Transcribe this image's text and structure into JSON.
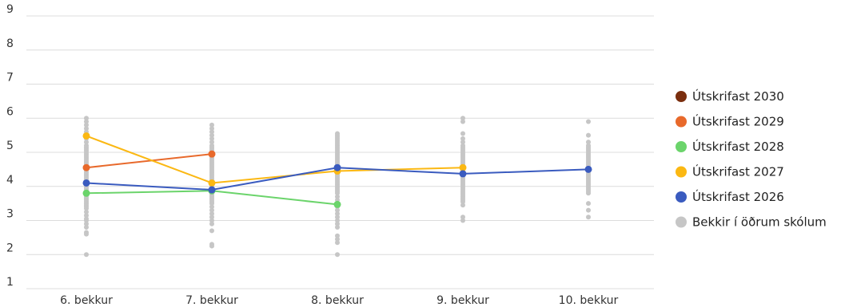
{
  "chart_data": {
    "type": "line",
    "categories": [
      "6. bekkur",
      "7. bekkur",
      "8. bekkur",
      "9. bekkur",
      "10. bekkur"
    ],
    "y_ticks": [
      "1",
      "2",
      "3",
      "4",
      "5",
      "6",
      "7",
      "8",
      "9"
    ],
    "ylim": [
      1,
      9
    ],
    "grid": true,
    "legend_position": "right",
    "series": [
      {
        "name": "Útskrifast 2030",
        "color": "#7a2e0e",
        "values": [
          null,
          null,
          null,
          null,
          null
        ]
      },
      {
        "name": "Útskrifast 2029",
        "color": "#e8692b",
        "values": [
          4.55,
          4.95,
          null,
          null,
          null
        ]
      },
      {
        "name": "Útskrifast 2028",
        "color": "#6bd46b",
        "values": [
          3.8,
          3.87,
          3.47,
          null,
          null
        ]
      },
      {
        "name": "Útskrifast 2027",
        "color": "#fbb813",
        "values": [
          5.48,
          4.1,
          4.45,
          4.55,
          null
        ]
      },
      {
        "name": "Útskrifast 2026",
        "color": "#3a5bbf",
        "values": [
          4.1,
          3.9,
          4.55,
          4.37,
          4.5
        ]
      }
    ],
    "other_schools": {
      "name": "Bekkir í öðrum skólum",
      "color": "#c6c6c6",
      "points": [
        [
          2.0,
          2.6,
          2.65,
          2.8,
          2.9,
          3.0,
          3.05,
          3.15,
          3.25,
          3.35,
          3.4,
          3.45,
          3.5,
          3.55,
          3.6,
          3.65,
          3.7,
          3.75,
          3.8,
          3.85,
          3.9,
          3.95,
          4.0,
          4.05,
          4.1,
          4.15,
          4.2,
          4.25,
          4.3,
          4.35,
          4.4,
          4.45,
          4.5,
          4.55,
          4.6,
          4.65,
          4.7,
          4.75,
          4.8,
          4.85,
          4.9,
          4.95,
          5.0,
          5.05,
          5.1,
          5.15,
          5.2,
          5.3,
          5.4,
          5.5,
          5.6,
          5.7,
          5.8,
          5.9,
          6.0
        ],
        [
          2.25,
          2.3,
          2.7,
          2.9,
          3.0,
          3.1,
          3.2,
          3.3,
          3.4,
          3.5,
          3.55,
          3.6,
          3.65,
          3.7,
          3.75,
          3.8,
          3.85,
          3.9,
          3.95,
          4.0,
          4.05,
          4.1,
          4.15,
          4.2,
          4.25,
          4.3,
          4.35,
          4.4,
          4.45,
          4.5,
          4.55,
          4.6,
          4.65,
          4.7,
          4.75,
          4.8,
          4.85,
          4.9,
          4.95,
          5.0,
          5.05,
          5.1,
          5.15,
          5.2,
          5.3,
          5.4,
          5.5,
          5.6,
          5.7,
          5.8
        ],
        [
          2.0,
          2.35,
          2.45,
          2.55,
          2.8,
          2.9,
          3.0,
          3.1,
          3.2,
          3.3,
          3.4,
          3.5,
          3.6,
          3.7,
          3.8,
          3.85,
          3.9,
          3.95,
          4.0,
          4.05,
          4.1,
          4.15,
          4.2,
          4.25,
          4.3,
          4.35,
          4.4,
          4.45,
          4.5,
          4.55,
          4.6,
          4.65,
          4.7,
          4.75,
          4.8,
          4.85,
          4.9,
          4.95,
          5.0,
          5.05,
          5.1,
          5.15,
          5.2,
          5.25,
          5.3,
          5.35,
          5.4,
          5.45,
          5.5,
          5.55
        ],
        [
          3.0,
          3.1,
          3.45,
          3.55,
          3.6,
          3.65,
          3.7,
          3.75,
          3.8,
          3.85,
          3.9,
          3.95,
          4.0,
          4.05,
          4.1,
          4.15,
          4.2,
          4.25,
          4.3,
          4.35,
          4.4,
          4.45,
          4.5,
          4.55,
          4.6,
          4.65,
          4.7,
          4.75,
          4.8,
          4.85,
          4.9,
          4.95,
          5.0,
          5.05,
          5.1,
          5.15,
          5.2,
          5.3,
          5.4,
          5.55,
          5.9,
          6.0
        ],
        [
          3.1,
          3.3,
          3.5,
          3.8,
          3.85,
          3.9,
          3.95,
          4.0,
          4.05,
          4.1,
          4.15,
          4.2,
          4.25,
          4.3,
          4.35,
          4.4,
          4.45,
          4.5,
          4.55,
          4.6,
          4.65,
          4.7,
          4.75,
          4.8,
          4.85,
          4.9,
          4.95,
          5.0,
          5.05,
          5.1,
          5.15,
          5.2,
          5.3,
          5.5,
          5.9
        ]
      ]
    }
  }
}
